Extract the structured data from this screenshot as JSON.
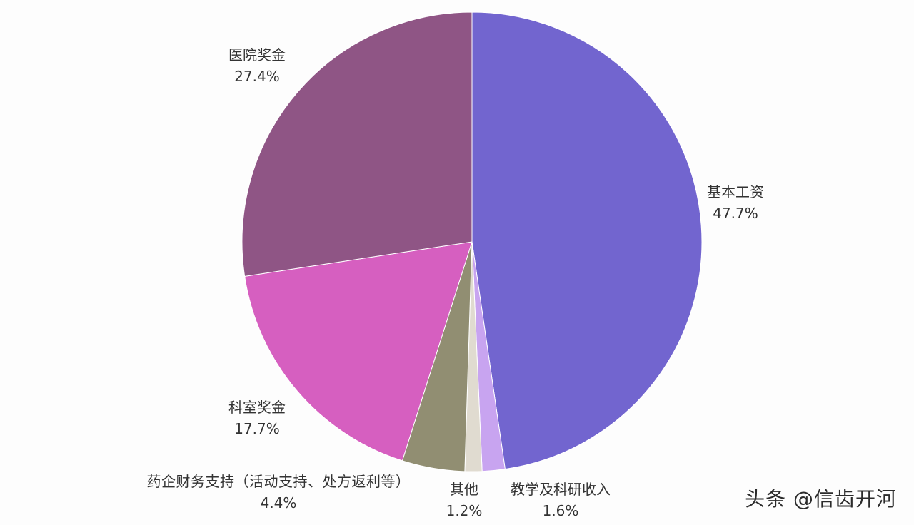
{
  "chart_data": {
    "type": "pie",
    "title": "",
    "slices": [
      {
        "label": "基本工资",
        "value": 47.7,
        "value_label": "47.7%",
        "color": "#7265cf"
      },
      {
        "label": "教学及科研收入",
        "value": 1.6,
        "value_label": "1.6%",
        "color": "#c8a4f0"
      },
      {
        "label": "其他",
        "value": 1.2,
        "value_label": "1.2%",
        "color": "#e0dbd0"
      },
      {
        "label": "药企财务支持（活动支持、处方返利等）",
        "value": 4.4,
        "value_label": "4.4%",
        "color": "#918e72"
      },
      {
        "label": "科室奖金",
        "value": 17.7,
        "value_label": "17.7%",
        "color": "#d65fc0"
      },
      {
        "label": "医院奖金",
        "value": 27.4,
        "value_label": "27.4%",
        "color": "#8f5585"
      }
    ],
    "start_angle": "12 o'clock",
    "direction": "clockwise",
    "legend": "none"
  },
  "watermark": "头条 @信齿开河"
}
